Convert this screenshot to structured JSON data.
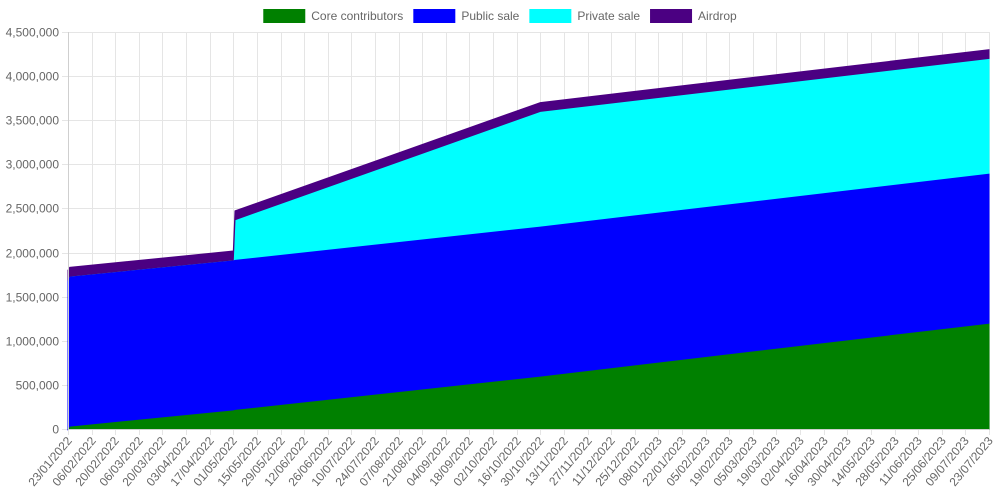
{
  "chart_data": {
    "type": "area",
    "stacked": true,
    "legend_position": "top",
    "grid": true,
    "x_ticks": [
      "23/01/2022",
      "06/02/2022",
      "20/02/2022",
      "06/03/2022",
      "20/03/2022",
      "03/04/2022",
      "17/04/2022",
      "01/05/2022",
      "15/05/2022",
      "29/05/2022",
      "12/06/2022",
      "26/06/2022",
      "10/07/2022",
      "24/07/2022",
      "07/08/2022",
      "21/08/2022",
      "04/09/2022",
      "18/09/2022",
      "02/10/2022",
      "16/10/2022",
      "30/10/2022",
      "13/11/2022",
      "27/11/2022",
      "11/12/2022",
      "25/12/2022",
      "08/01/2023",
      "22/01/2023",
      "05/02/2023",
      "19/02/2023",
      "05/03/2023",
      "19/03/2023",
      "02/04/2023",
      "16/04/2023",
      "30/04/2023",
      "14/05/2023",
      "28/05/2023",
      "11/06/2023",
      "25/06/2023",
      "09/07/2023",
      "23/07/2023"
    ],
    "y_ticks": [
      "0",
      "500,000",
      "1,000,000",
      "1,500,000",
      "2,000,000",
      "2,500,000",
      "3,000,000",
      "3,500,000",
      "4,000,000",
      "4,500,000"
    ],
    "ylim": [
      0,
      4500000
    ],
    "x": [
      "23/01/2022",
      "24/01/2022",
      "01/05/2022",
      "02/05/2022",
      "30/10/2022",
      "23/07/2023"
    ],
    "series": [
      {
        "name": "Core contributors",
        "color": "#008000",
        "values": [
          0,
          33000,
          217000,
          222000,
          600000,
          1200000
        ]
      },
      {
        "name": "Public sale",
        "color": "#0000ff",
        "values": [
          1700000,
          1700000,
          1700000,
          1700000,
          1700000,
          1700000
        ]
      },
      {
        "name": "Private sale",
        "color": "#00ffff",
        "values": [
          0,
          0,
          0,
          450000,
          1300000,
          1300000
        ]
      },
      {
        "name": "Airdrop",
        "color": "#4b0082",
        "values": [
          100000,
          100000,
          100000,
          100000,
          100000,
          100000
        ]
      }
    ]
  }
}
